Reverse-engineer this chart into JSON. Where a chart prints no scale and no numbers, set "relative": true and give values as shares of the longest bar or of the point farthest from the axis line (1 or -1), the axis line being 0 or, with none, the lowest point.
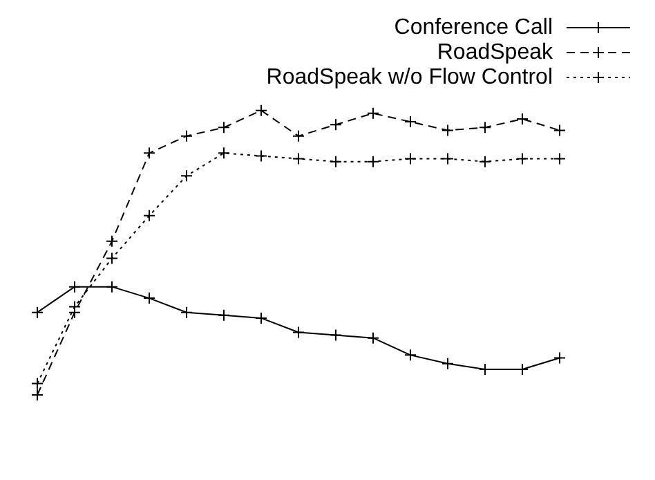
{
  "chart_data": {
    "type": "line",
    "relative": true,
    "legend": "top right",
    "categories": [
      null,
      null,
      null,
      null,
      null,
      null,
      null,
      null,
      null,
      null,
      null,
      null,
      null,
      null,
      null
    ],
    "series": [
      {
        "name": "Conference Call",
        "color": "#000000",
        "line_style": "solid",
        "marker": "cross",
        "values": [
          0.29,
          0.38,
          0.38,
          0.34,
          0.29,
          0.28,
          0.27,
          0.22,
          0.21,
          0.2,
          0.14,
          0.11,
          0.09,
          0.09,
          0.13
        ]
      },
      {
        "name": "RoadSpeak",
        "color": "#000000",
        "line_style": "dashed",
        "marker": "cross",
        "values": [
          0,
          0.29,
          0.54,
          0.85,
          0.91,
          0.94,
          1,
          0.91,
          0.95,
          0.99,
          0.96,
          0.93,
          0.94,
          0.97,
          0.93
        ]
      },
      {
        "name": "RoadSpeak w/o Flow Control",
        "color": "#000000",
        "line_style": "dotted",
        "marker": "cross",
        "values": [
          0.04,
          0.31,
          0.48,
          0.63,
          0.77,
          0.85,
          0.84,
          0.83,
          0.82,
          0.82,
          0.83,
          0.83,
          0.82,
          0.83,
          0.83
        ]
      }
    ]
  }
}
